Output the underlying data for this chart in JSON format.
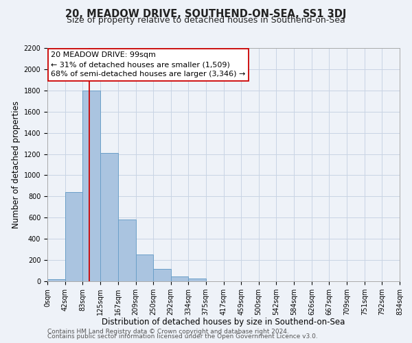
{
  "title": "20, MEADOW DRIVE, SOUTHEND-ON-SEA, SS1 3DJ",
  "subtitle": "Size of property relative to detached houses in Southend-on-Sea",
  "xlabel": "Distribution of detached houses by size in Southend-on-Sea",
  "ylabel": "Number of detached properties",
  "footer_line1": "Contains HM Land Registry data © Crown copyright and database right 2024.",
  "footer_line2": "Contains public sector information licensed under the Open Government Licence v3.0.",
  "bar_edges": [
    0,
    42,
    83,
    125,
    167,
    209,
    250,
    292,
    334,
    375,
    417,
    459,
    500,
    542,
    584,
    626,
    667,
    709,
    751,
    792,
    834
  ],
  "bar_heights": [
    20,
    840,
    1800,
    1210,
    585,
    255,
    115,
    45,
    25,
    0,
    0,
    0,
    0,
    0,
    0,
    0,
    0,
    0,
    0,
    0
  ],
  "bar_color": "#aac4e0",
  "bar_edge_color": "#6a9fc8",
  "grid_color": "#c8d4e4",
  "background_color": "#eef2f8",
  "property_line_x": 99,
  "property_line_color": "#cc0000",
  "annotation_line1": "20 MEADOW DRIVE: 99sqm",
  "annotation_line2": "← 31% of detached houses are smaller (1,509)",
  "annotation_line3": "68% of semi-detached houses are larger (3,346) →",
  "annotation_box_color": "#ffffff",
  "annotation_box_edge_color": "#cc0000",
  "ylim": [
    0,
    2200
  ],
  "yticks": [
    0,
    200,
    400,
    600,
    800,
    1000,
    1200,
    1400,
    1600,
    1800,
    2000,
    2200
  ],
  "xtick_labels": [
    "0sqm",
    "42sqm",
    "83sqm",
    "125sqm",
    "167sqm",
    "209sqm",
    "250sqm",
    "292sqm",
    "334sqm",
    "375sqm",
    "417sqm",
    "459sqm",
    "500sqm",
    "542sqm",
    "584sqm",
    "626sqm",
    "667sqm",
    "709sqm",
    "751sqm",
    "792sqm",
    "834sqm"
  ],
  "title_fontsize": 10.5,
  "subtitle_fontsize": 9,
  "axis_label_fontsize": 8.5,
  "tick_fontsize": 7,
  "annotation_fontsize": 8,
  "footer_fontsize": 6.5
}
